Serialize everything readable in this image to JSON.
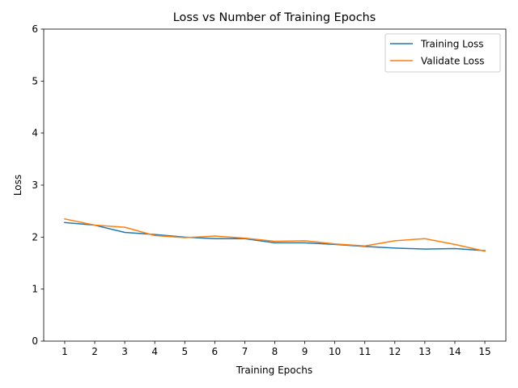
{
  "chart_data": {
    "type": "line",
    "title": "Loss vs Number of Training Epochs",
    "xlabel": "Training Epochs",
    "ylabel": "Loss",
    "x": [
      1,
      2,
      3,
      4,
      5,
      6,
      7,
      8,
      9,
      10,
      11,
      12,
      13,
      14,
      15
    ],
    "xticks": [
      "1",
      "2",
      "3",
      "4",
      "5",
      "6",
      "7",
      "8",
      "9",
      "10",
      "11",
      "12",
      "13",
      "14",
      "15"
    ],
    "yticks": [
      "0",
      "1",
      "2",
      "3",
      "4",
      "5",
      "6"
    ],
    "ylim": [
      0,
      6
    ],
    "xlim": [
      0.3,
      15.7
    ],
    "grid": false,
    "legend_position": "top-right",
    "series": [
      {
        "name": "Training Loss",
        "color": "#1f77b4",
        "values": [
          2.28,
          2.23,
          2.09,
          2.05,
          2.0,
          1.97,
          1.97,
          1.89,
          1.89,
          1.86,
          1.82,
          1.79,
          1.77,
          1.78,
          1.74
        ]
      },
      {
        "name": "Validate Loss",
        "color": "#ff7f0e",
        "values": [
          2.35,
          2.23,
          2.19,
          2.03,
          1.99,
          2.02,
          1.98,
          1.92,
          1.93,
          1.87,
          1.83,
          1.93,
          1.97,
          1.86,
          1.73
        ]
      }
    ]
  }
}
